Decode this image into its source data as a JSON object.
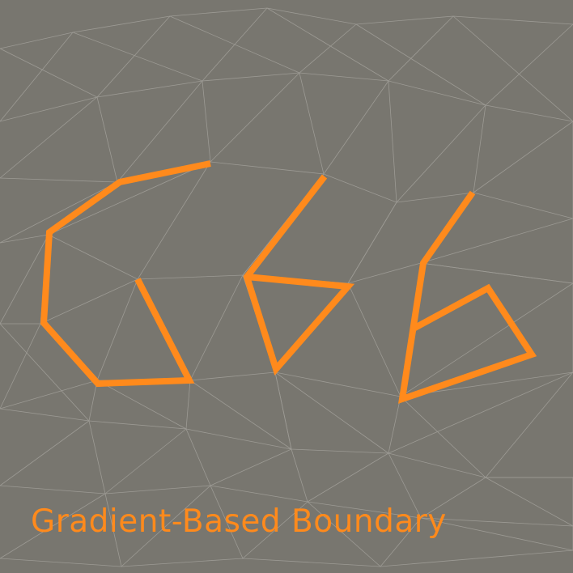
{
  "caption": "Gradient-Based Boundary",
  "colors": {
    "background": "#78766f",
    "mesh_lines": "#a9a7a1",
    "strokes": "#ff8a1c"
  }
}
